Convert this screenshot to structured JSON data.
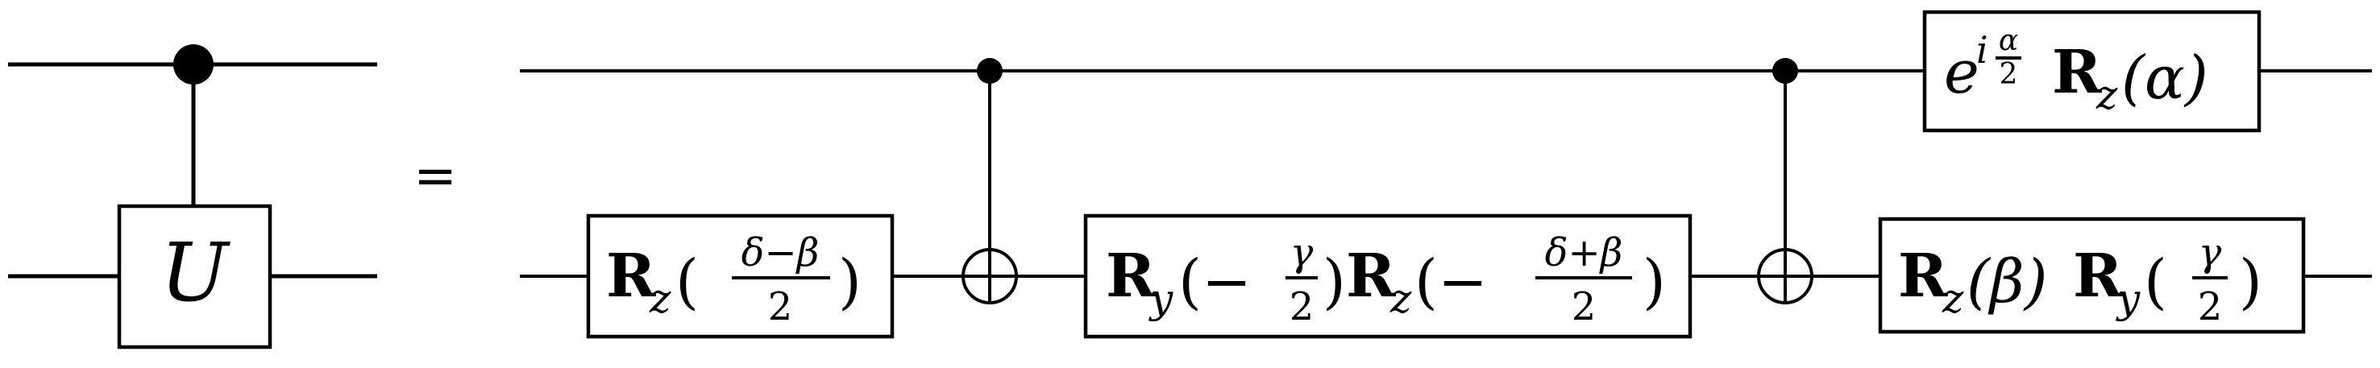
{
  "lhs": {
    "gate_label": "U"
  },
  "equals_sign": "=",
  "rhs": {
    "gate1": {
      "main": "R",
      "sub": "z",
      "open": "(",
      "num": "δ−β",
      "den": "2",
      "close": ")"
    },
    "gate2": {
      "a_main": "R",
      "a_sub": "y",
      "a_open": "(−",
      "a_num": "γ",
      "a_den": "2",
      "a_close": ")",
      "b_main": "R",
      "b_sub": "z",
      "b_open": "(−",
      "b_num": "δ+β",
      "b_den": "2",
      "b_close": ")"
    },
    "gate3": {
      "a_main": "R",
      "a_sub": "z",
      "a_arg": "(β)",
      "b_main": "R",
      "b_sub": "y",
      "b_open": "(",
      "b_num": "γ",
      "b_den": "2",
      "b_close": ")"
    },
    "phase_gate": {
      "e": "e",
      "i": "i",
      "num": "α",
      "den": "2",
      "main": "R",
      "sub": "z",
      "arg": "(α)"
    }
  }
}
